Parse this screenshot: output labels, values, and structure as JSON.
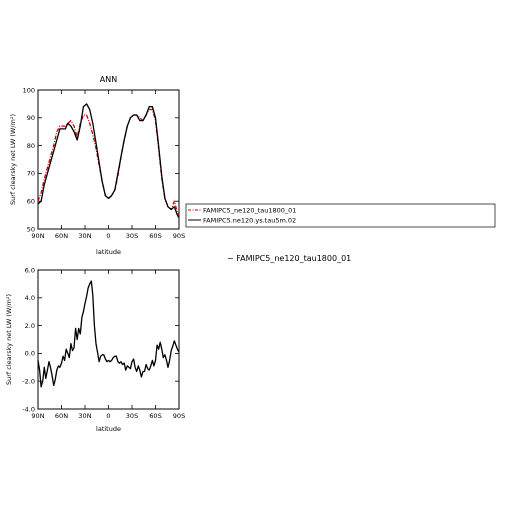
{
  "chart_data": [
    {
      "type": "line",
      "title": "ANN",
      "xlabel": "latitude",
      "ylabel": "Surf clearsky net LW (W/m²)",
      "xlim": [
        90,
        -90
      ],
      "ylim": [
        50,
        100
      ],
      "x_ticks": [
        "90N",
        "60N",
        "30N",
        "0",
        "30S",
        "60S",
        "90S"
      ],
      "y_ticks": [
        "50",
        "60",
        "70",
        "80",
        "90",
        "100"
      ],
      "legend_position": "right",
      "series": [
        {
          "name": "FAMIPC5_ne120_tau1800_01",
          "color": "#cc0000",
          "style": "dash-dot",
          "x": [
            90,
            86,
            82,
            78,
            74,
            70,
            66,
            62,
            58,
            55,
            52,
            48,
            44,
            40,
            36,
            32,
            28,
            24,
            20,
            16,
            12,
            8,
            4,
            0,
            -4,
            -8,
            -12,
            -16,
            -20,
            -24,
            -28,
            -32,
            -36,
            -40,
            -44,
            -48,
            -52,
            -56,
            -60,
            -64,
            -68,
            -72,
            -76,
            -80,
            -84,
            -88,
            -90
          ],
          "y": [
            60,
            63,
            68,
            72,
            76,
            80,
            85,
            87,
            87,
            87,
            88,
            89,
            87,
            83,
            88,
            91,
            91,
            88,
            84,
            79,
            73,
            67,
            62,
            61,
            62,
            64,
            69,
            76,
            82,
            87,
            90,
            91,
            91,
            90,
            89,
            91,
            93,
            93,
            89,
            79,
            68,
            61,
            58,
            57,
            60,
            56,
            55
          ]
        },
        {
          "name": "FAMIPC5.ne120.ys.tau5m.02",
          "color": "#000000",
          "style": "solid",
          "x": [
            90,
            86,
            82,
            78,
            74,
            70,
            66,
            62,
            58,
            55,
            52,
            48,
            44,
            40,
            36,
            32,
            28,
            24,
            20,
            16,
            12,
            8,
            4,
            0,
            -4,
            -8,
            -12,
            -16,
            -20,
            -24,
            -28,
            -32,
            -36,
            -40,
            -44,
            -48,
            -52,
            -56,
            -60,
            -64,
            -68,
            -72,
            -76,
            -80,
            -84,
            -88,
            -90
          ],
          "y": [
            59,
            60,
            66,
            70,
            74,
            78,
            82,
            86,
            86,
            86,
            88,
            87,
            85,
            82,
            87,
            94,
            95,
            93,
            88,
            81,
            74,
            67,
            62,
            61,
            62,
            64,
            70,
            76,
            82,
            87,
            90,
            91,
            91,
            89,
            89,
            91,
            94,
            94,
            90,
            80,
            69,
            61,
            58,
            57,
            58,
            55,
            54
          ]
        }
      ]
    },
    {
      "type": "line",
      "title": "",
      "xlabel": "latitude",
      "ylabel": "Surf clearsky net LW (W/m²)",
      "xlim": [
        90,
        -90
      ],
      "ylim": [
        -4.0,
        6.0
      ],
      "x_ticks": [
        "90N",
        "60N",
        "30N",
        "0",
        "30S",
        "60S",
        "90S"
      ],
      "y_ticks": [
        "-4.0",
        "-2.0",
        "0.0",
        "2.0",
        "4.0",
        "6.0"
      ],
      "series": [
        {
          "color": "#000000",
          "x": [
            90,
            88,
            86,
            84,
            82,
            80,
            78,
            76,
            74,
            72,
            70,
            68,
            66,
            64,
            62,
            60,
            58,
            56,
            54,
            52,
            50,
            48,
            46,
            44,
            42,
            40,
            38,
            36,
            34,
            32,
            30,
            28,
            26,
            24,
            22,
            20,
            18,
            16,
            14,
            12,
            10,
            8,
            6,
            4,
            2,
            0,
            -2,
            -4,
            -6,
            -8,
            -10,
            -12,
            -14,
            -16,
            -18,
            -20,
            -22,
            -24,
            -26,
            -28,
            -30,
            -32,
            -34,
            -36,
            -38,
            -40,
            -42,
            -44,
            -46,
            -48,
            -50,
            -52,
            -54,
            -56,
            -58,
            -60,
            -62,
            -64,
            -66,
            -68,
            -70,
            -72,
            -74,
            -76,
            -78,
            -80,
            -82,
            -84,
            -86,
            -88,
            -90
          ],
          "y": [
            -0.5,
            -1.2,
            -2.4,
            -2.0,
            -1.0,
            -1.8,
            -1.2,
            -0.6,
            -1.0,
            -1.6,
            -2.3,
            -1.9,
            -1.2,
            -0.9,
            -1.0,
            -0.7,
            -0.2,
            -0.5,
            0.3,
            0.0,
            -0.3,
            0.7,
            0.2,
            0.4,
            1.8,
            1.0,
            1.8,
            1.4,
            2.6,
            3.0,
            3.6,
            4.1,
            4.7,
            5.0,
            5.2,
            4.2,
            2.0,
            0.7,
            0.1,
            -0.6,
            -0.2,
            -0.1,
            -0.1,
            -0.4,
            -0.6,
            -0.5,
            -0.6,
            -0.5,
            -0.3,
            -0.2,
            -0.2,
            -0.6,
            -0.7,
            -0.6,
            -0.8,
            -0.7,
            -1.2,
            -0.9,
            -1.0,
            -1.1,
            -0.6,
            -0.4,
            -1.0,
            -1.3,
            -0.9,
            -1.2,
            -1.7,
            -1.3,
            -1.3,
            -0.8,
            -1.1,
            -1.2,
            -0.9,
            -0.5,
            -0.9,
            -0.5,
            0.6,
            0.3,
            0.8,
            0.3,
            -0.3,
            -0.1,
            -0.5,
            -1.0,
            -0.5,
            0.2,
            0.5,
            0.9,
            0.6,
            0.3,
            0.1
          ]
        }
      ]
    }
  ],
  "side_note": "− FAMIPC5_ne120_tau1800_01"
}
